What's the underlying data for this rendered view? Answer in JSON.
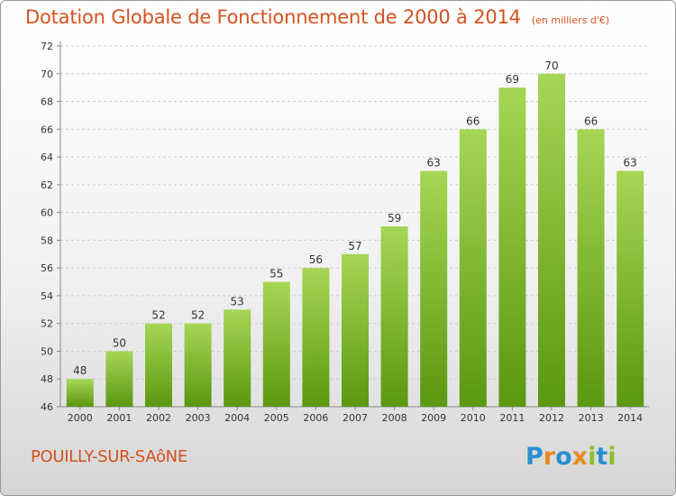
{
  "header": {
    "title": "Dotation Globale de Fonctionnement de 2000 à 2014",
    "unit": "(en milliers d'€)"
  },
  "footer": {
    "commune": "POUILLY-SUR-SAôNE",
    "logo": "Proxiti",
    "logo_letters": [
      "P",
      "r",
      "o",
      "x",
      "i",
      "t",
      "i"
    ],
    "logo_colors": [
      "#2a8fd0",
      "#e8891c",
      "#2a8fd0",
      "#e8891c",
      "#8cbf2a",
      "#2a8fd0",
      "#8cbf2a"
    ]
  },
  "colors": {
    "bar_top": "#a6d655",
    "bar_bottom": "#5b9710",
    "grid": "#cccccc",
    "axis": "#8a8a8a"
  },
  "chart_data": {
    "type": "bar",
    "title": "Dotation Globale de Fonctionnement de 2000 à 2014",
    "subtitle": "(en milliers d'€)",
    "xlabel": "",
    "ylabel": "",
    "categories": [
      "2000",
      "2001",
      "2002",
      "2003",
      "2004",
      "2005",
      "2006",
      "2007",
      "2008",
      "2009",
      "2010",
      "2011",
      "2012",
      "2013",
      "2014"
    ],
    "values": [
      48,
      50,
      52,
      52,
      53,
      55,
      56,
      57,
      59,
      63,
      66,
      69,
      70,
      66,
      63
    ],
    "ylim": [
      46,
      72
    ],
    "yticks": [
      46,
      48,
      50,
      52,
      54,
      56,
      58,
      60,
      62,
      64,
      66,
      68,
      70,
      72
    ],
    "grid": true,
    "legend": "none"
  }
}
